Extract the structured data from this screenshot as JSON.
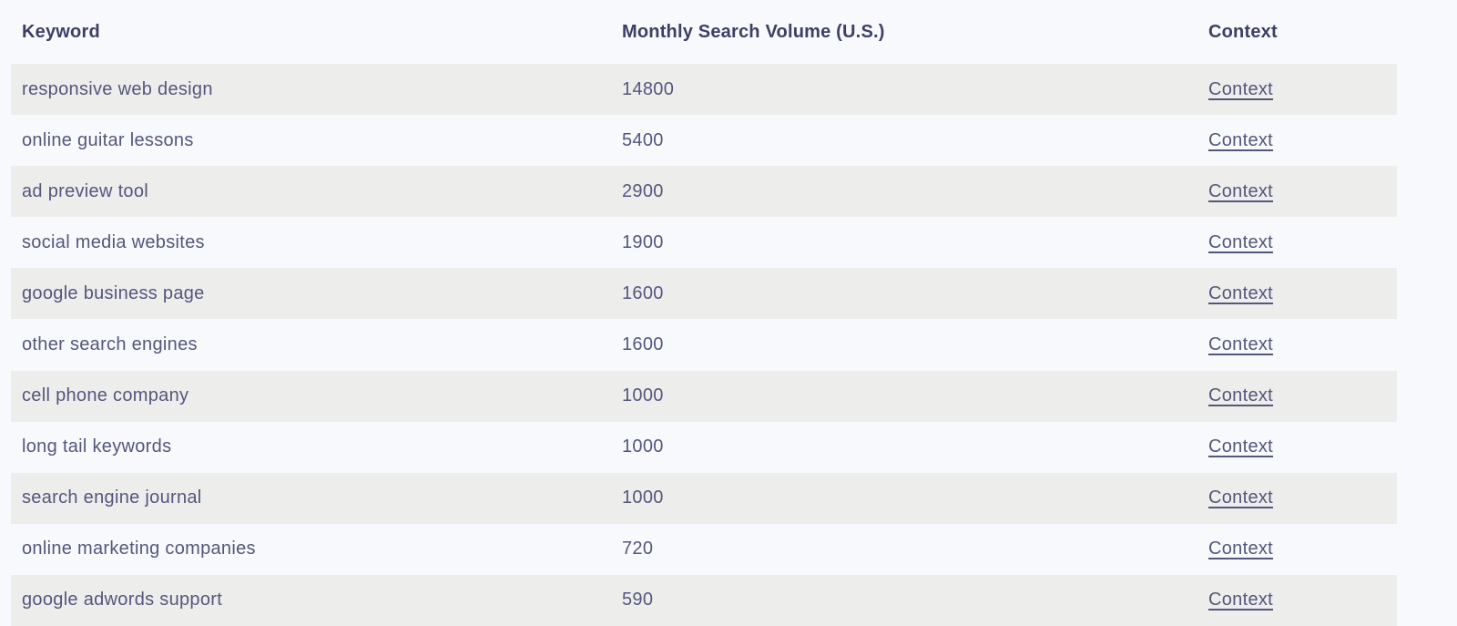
{
  "table": {
    "columns": [
      {
        "label": "Keyword"
      },
      {
        "label": "Monthly Search Volume (U.S.)"
      },
      {
        "label": "Context"
      }
    ],
    "link_label": "Context",
    "rows": [
      {
        "keyword": "responsive web design",
        "volume": "14800"
      },
      {
        "keyword": "online guitar lessons",
        "volume": "5400"
      },
      {
        "keyword": "ad preview tool",
        "volume": "2900"
      },
      {
        "keyword": "social media websites",
        "volume": "1900"
      },
      {
        "keyword": "google business page",
        "volume": "1600"
      },
      {
        "keyword": "other search engines",
        "volume": "1600"
      },
      {
        "keyword": "cell phone company",
        "volume": "1000"
      },
      {
        "keyword": "long tail keywords",
        "volume": "1000"
      },
      {
        "keyword": "search engine journal",
        "volume": "1000"
      },
      {
        "keyword": "online marketing companies",
        "volume": "720"
      },
      {
        "keyword": "google adwords support",
        "volume": "590"
      }
    ],
    "colors": {
      "page_bg": "#f8f9fc",
      "row_stripe": "#ededec",
      "header_text": "#3c4066",
      "body_text": "#53577c",
      "link_text": "#53577c"
    }
  }
}
